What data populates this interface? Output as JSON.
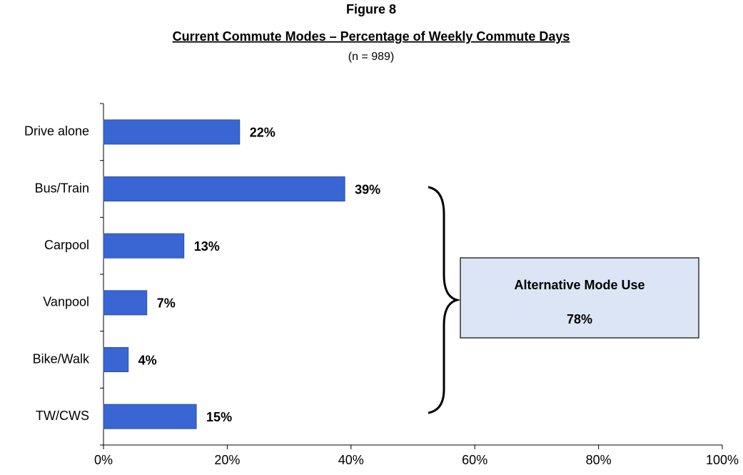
{
  "chart_data": {
    "type": "barh",
    "title": "Figure 8",
    "subtitle": "Current Commute Modes – Percentage of Weekly Commute Days",
    "note": "(n = 989)",
    "categories": [
      "Drive alone",
      "Bus/Train",
      "Carpool",
      "Vanpool",
      "Bike/Walk",
      "TW/CWS"
    ],
    "values": [
      22,
      39,
      13,
      7,
      4,
      15
    ],
    "value_labels": [
      "22%",
      "39%",
      "13%",
      "7%",
      "4%",
      "15%"
    ],
    "color": "#3a66d4",
    "xlim": [
      0,
      100
    ],
    "xticks": [
      {
        "value": 0,
        "label": "0%"
      },
      {
        "value": 20,
        "label": "20%"
      },
      {
        "value": 40,
        "label": "40%"
      },
      {
        "value": 60,
        "label": "60%"
      },
      {
        "value": 80,
        "label": "80%"
      },
      {
        "value": 100,
        "label": "100%"
      }
    ],
    "annotation": {
      "text": "Alternative Mode Use",
      "label": "78%"
    }
  }
}
